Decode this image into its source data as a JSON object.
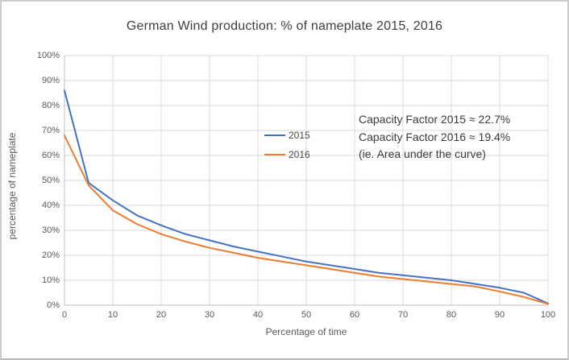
{
  "window": {
    "background": "#ffffff",
    "border_color": "#cbcbcb"
  },
  "chart_data": {
    "type": "line",
    "title": "German Wind production: % of nameplate 2015, 2016",
    "xlabel": "Percentage of time",
    "ylabel": "percentage of nameplate",
    "xlim": [
      0,
      100
    ],
    "ylim": [
      0,
      100
    ],
    "grid": true,
    "grid_color": "#d9d9d9",
    "axis_color": "#bfbfbf",
    "legend_position": "inside-left-center",
    "xticks": [
      0,
      10,
      20,
      30,
      40,
      50,
      60,
      70,
      80,
      90,
      100
    ],
    "xtick_labels": [
      "0",
      "10",
      "20",
      "30",
      "40",
      "50",
      "60",
      "70",
      "80",
      "90",
      "100"
    ],
    "yticks": [
      0,
      10,
      20,
      30,
      40,
      50,
      60,
      70,
      80,
      90,
      100
    ],
    "ytick_labels": [
      "0%",
      "10%",
      "20%",
      "30%",
      "40%",
      "50%",
      "60%",
      "70%",
      "80%",
      "90%",
      "100%"
    ],
    "x": [
      0,
      5,
      10,
      15,
      20,
      25,
      30,
      35,
      40,
      45,
      50,
      55,
      60,
      65,
      70,
      75,
      80,
      85,
      90,
      95,
      100
    ],
    "series": [
      {
        "name": "2015",
        "color": "#4472C4",
        "values": [
          86,
          49,
          42,
          36,
          32,
          28.5,
          26,
          23.5,
          21.5,
          19.5,
          17.5,
          16,
          14.5,
          13,
          12,
          11,
          10,
          8.5,
          7,
          5,
          0.7
        ]
      },
      {
        "name": "2016",
        "color": "#ED7D31",
        "values": [
          68,
          48,
          38,
          32.5,
          28.5,
          25.5,
          23,
          21,
          19,
          17.5,
          16,
          14.5,
          13,
          11.5,
          10.5,
          9.5,
          8.5,
          7.5,
          5.5,
          3.3,
          0.5
        ]
      }
    ],
    "annotation": {
      "lines": [
        "Capacity Factor 2015 ≈ 22.7%",
        "Capacity Factor 2016 ≈ 19.4%",
        "(ie. Area under the curve)"
      ]
    }
  }
}
